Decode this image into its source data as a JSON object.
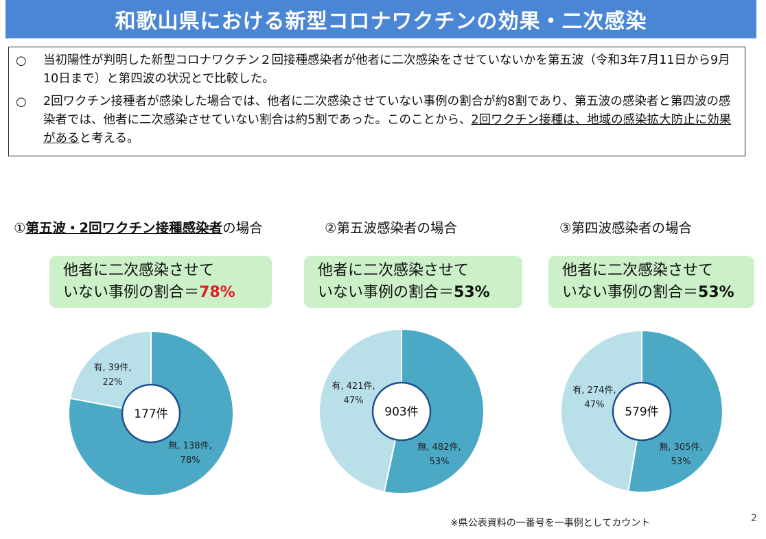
{
  "title": "和歌山県における新型コロナワクチンの効果・二次感染",
  "bullets": [
    {
      "mark": "○",
      "text": "当初陽性が判明した新型コロナワクチン２回接種感染者が他者に二次感染をさせていないかを第五波（令和3年7月11日から9月10日まで）と第四波の状況とで比較した。"
    },
    {
      "mark": "○",
      "text_plain": "2回ワクチン接種者が感染した場合では、他者に二次感染させていない事例の割合が約8割であり、第五波の感染者と第四波の感染者では、他者に二次感染させていない割合は約5割であった。このことから、",
      "text_underlined": "2回ワクチン接種は、地域の感染拡大防止に効果がある",
      "text_end": "と考える。"
    }
  ],
  "headings": [
    {
      "prefix": "①",
      "bold": "第五波・2回ワクチン接種感染者",
      "suffix": "の場合"
    },
    {
      "text": "②第五波感染者の場合"
    },
    {
      "text": "③第四波感染者の場合"
    }
  ],
  "callouts": [
    {
      "line1": "他者に二次感染させて",
      "line2": "いない事例の割合＝",
      "pct": "78%"
    },
    {
      "line1": "他者に二次感染させて",
      "line2": "いない事例の割合＝",
      "pct": "53%"
    },
    {
      "line1": "他者に二次感染させて",
      "line2": "いない事例の割合＝",
      "pct": "53%"
    }
  ],
  "colors": {
    "title_bg": "#4a86d3",
    "callout_bg": "#ccf0c8",
    "highlight_red": "#e02020",
    "slice_none": "#4ba9c6",
    "slice_yes": "#b9dfe9"
  },
  "chart_data": [
    {
      "type": "pie",
      "center_label": "177件",
      "slices": [
        {
          "name": "無",
          "count": 138,
          "unit": "件",
          "percent": 78,
          "label": "無, 138件,",
          "label2": "78%"
        },
        {
          "name": "有",
          "count": 39,
          "unit": "件",
          "percent": 22,
          "label": "有, 39件,",
          "label2": "22%"
        }
      ]
    },
    {
      "type": "pie",
      "center_label": "903件",
      "slices": [
        {
          "name": "無",
          "count": 482,
          "unit": "件",
          "percent": 53,
          "label": "無, 482件,",
          "label2": "53%"
        },
        {
          "name": "有",
          "count": 421,
          "unit": "件",
          "percent": 47,
          "label": "有, 421件,",
          "label2": "47%"
        }
      ]
    },
    {
      "type": "pie",
      "center_label": "579件",
      "slices": [
        {
          "name": "無",
          "count": 305,
          "unit": "件",
          "percent": 53,
          "label": "無, 305件,",
          "label2": "53%"
        },
        {
          "name": "有",
          "count": 274,
          "unit": "件",
          "percent": 47,
          "label": "有, 274件,",
          "label2": "47%"
        }
      ]
    }
  ],
  "footnote": "※県公表資料の一番号を一事例としてカウント",
  "page_number": "2"
}
